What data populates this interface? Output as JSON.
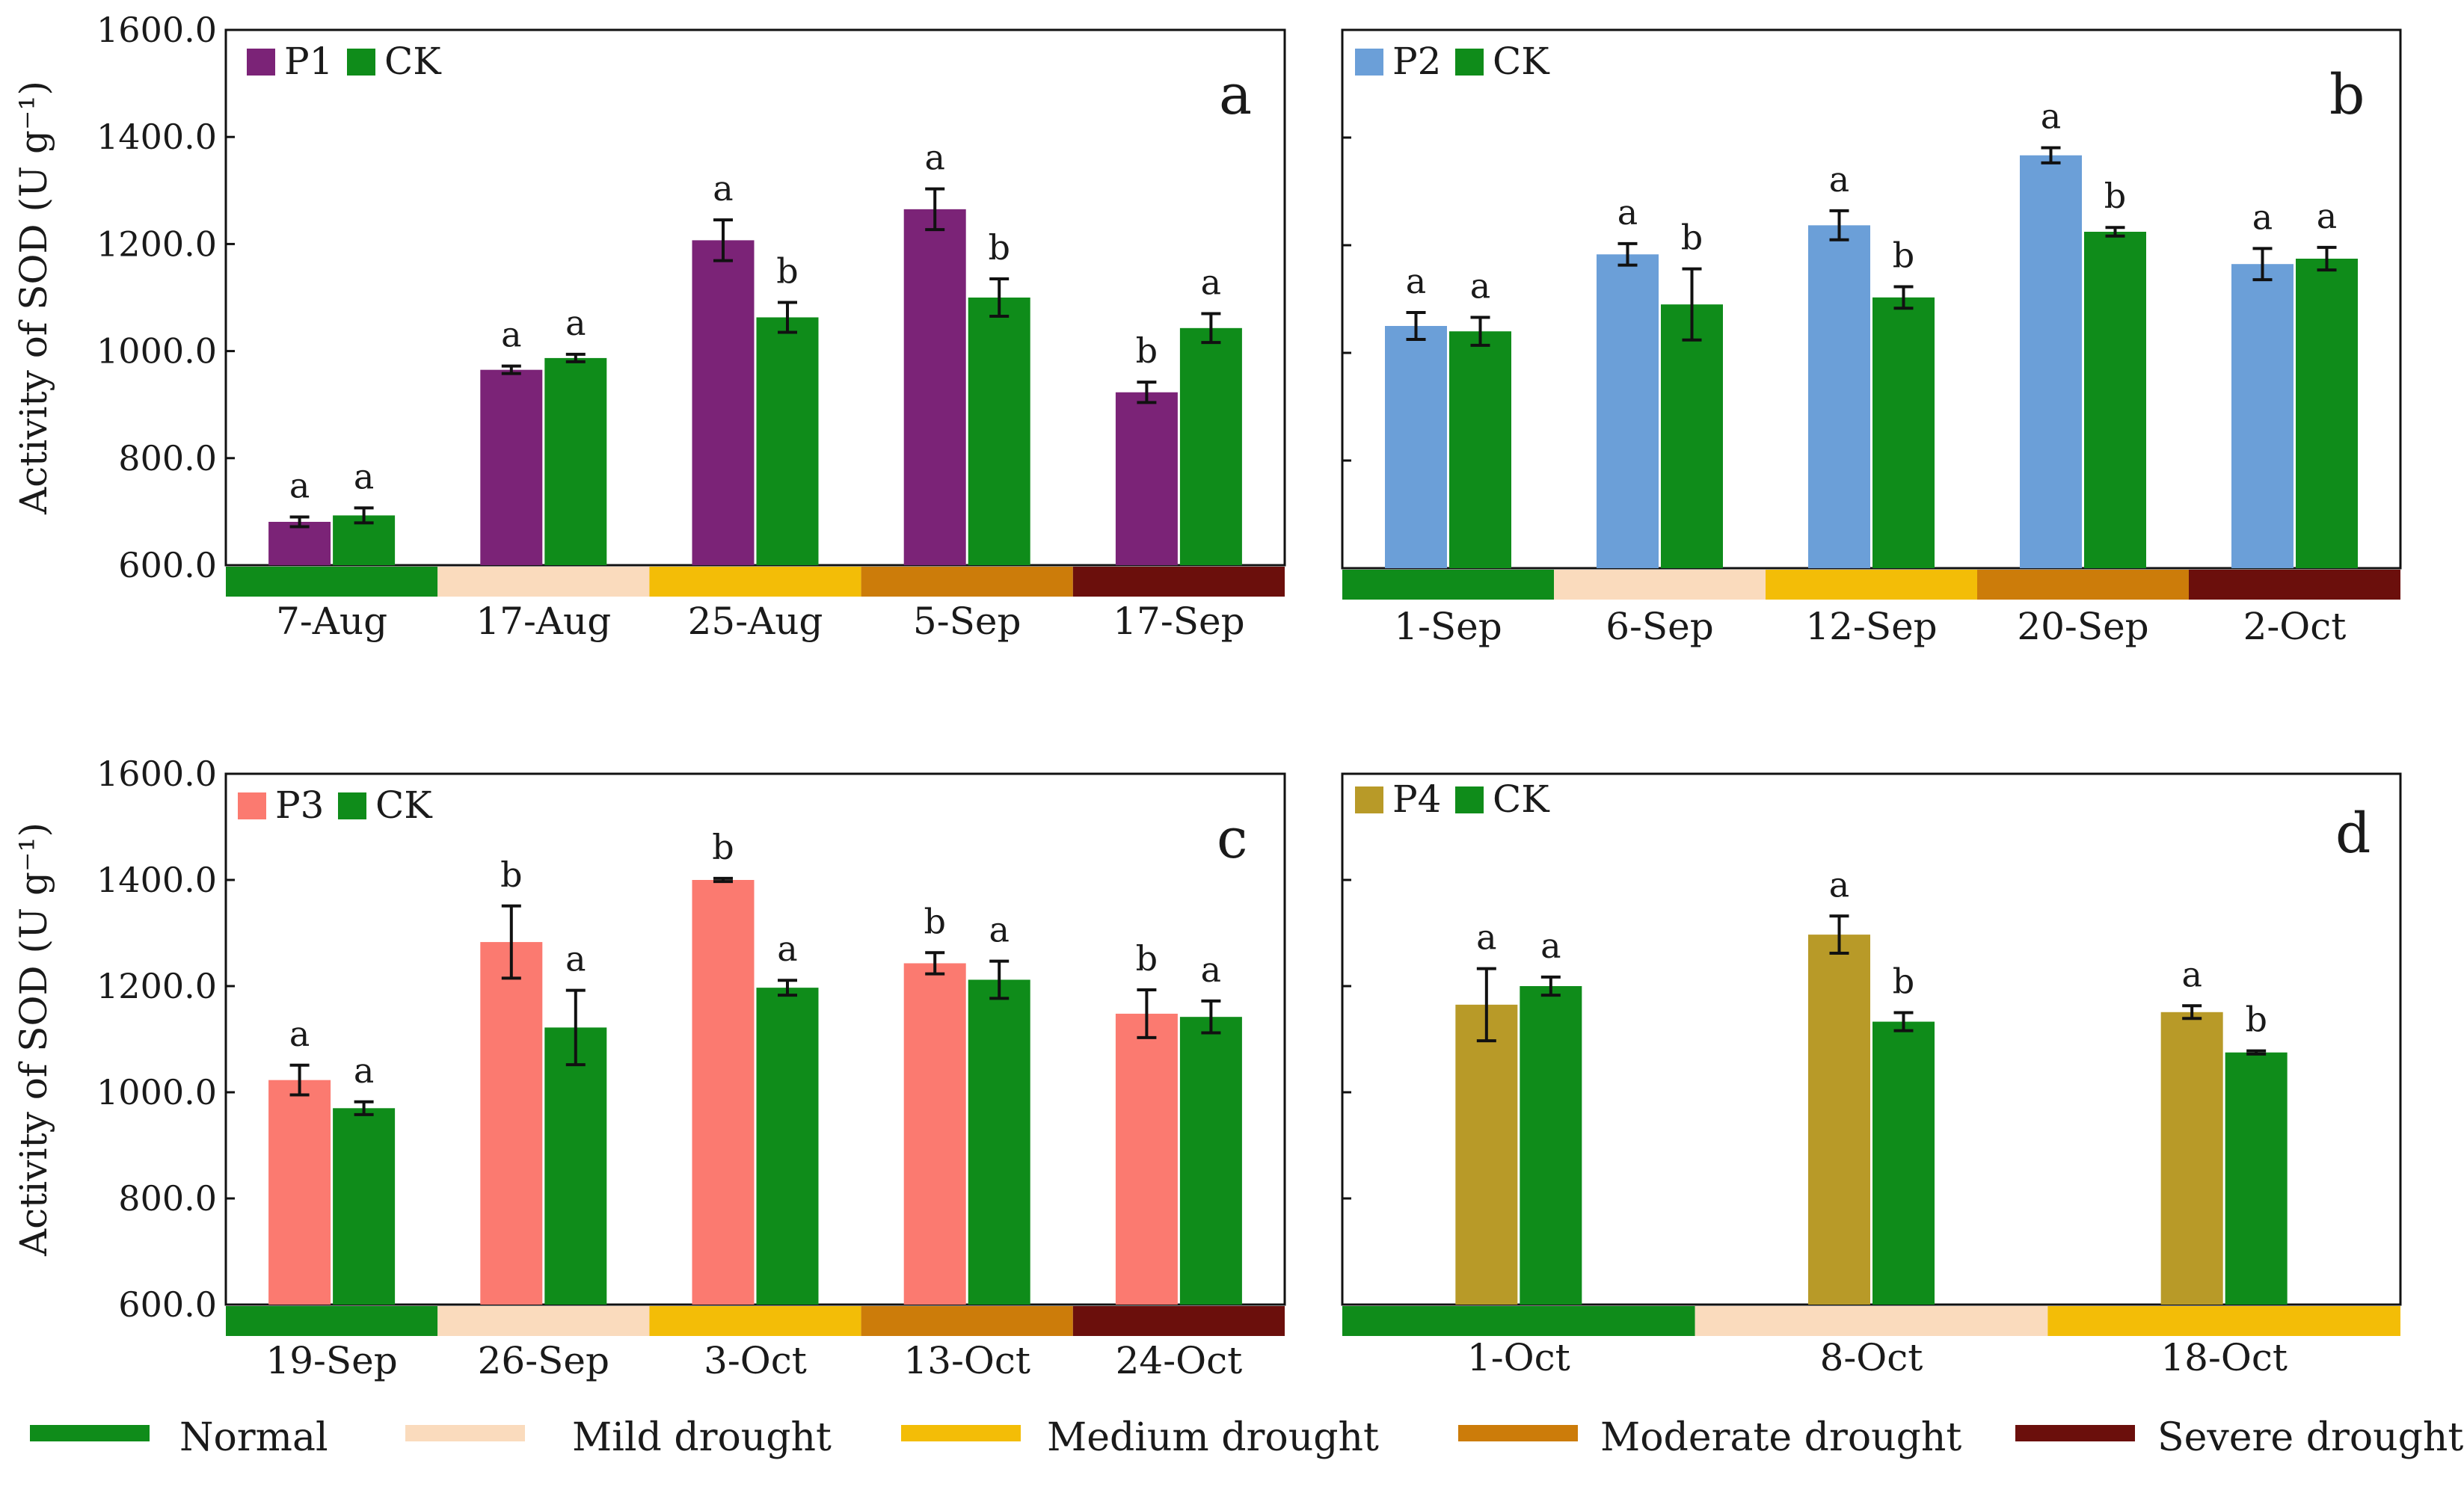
{
  "y_axis_label": "Activity of  SOD (U g⁻¹)",
  "colors": {
    "ck": "#0f8c1a",
    "P1": "#7b2377",
    "P2": "#6b9fd8",
    "P3": "#fb7a70",
    "P4": "#b89a28",
    "Normal": "#0f8c1a",
    "Mild drought": "#fadbbd",
    "Medium drought": "#f3bd07",
    "Moderate drought": "#cc7c0a",
    "Severe drought": "#6b0f0c"
  },
  "legend_stages": [
    {
      "label": "Normal",
      "key": "Normal"
    },
    {
      "label": "Mild drought",
      "key": "Mild drought"
    },
    {
      "label": "Medium drought",
      "key": "Medium drought"
    },
    {
      "label": "Moderate drought",
      "key": "Moderate drought"
    },
    {
      "label": "Severe drought",
      "key": "Severe drought"
    }
  ],
  "chart_data": [
    {
      "type": "bar",
      "panel": "a",
      "ylim": [
        600,
        1600
      ],
      "yticks": [
        "600.0",
        "800.0",
        "1000.0",
        "1200.0",
        "1400.0",
        "1600.0"
      ],
      "show_y_ticks": true,
      "legend": [
        "P1",
        "CK"
      ],
      "categories": [
        "7-Aug",
        "17-Aug",
        "25-Aug",
        "5-Sep",
        "17-Sep"
      ],
      "stages": [
        "Normal",
        "Mild drought",
        "Medium drought",
        "Moderate drought",
        "Severe drought"
      ],
      "series": [
        {
          "name": "P1",
          "values": [
            681,
            965,
            1207,
            1265,
            923
          ],
          "errors": [
            9,
            7,
            38,
            38,
            19
          ],
          "letters": [
            "a",
            "a",
            "a",
            "a",
            "b"
          ]
        },
        {
          "name": "CK",
          "values": [
            693,
            987,
            1063,
            1100,
            1043
          ],
          "errors": [
            14,
            7,
            28,
            35,
            27
          ],
          "letters": [
            "a",
            "a",
            "b",
            "b",
            "a"
          ]
        }
      ]
    },
    {
      "type": "bar",
      "panel": "b",
      "ylim": [
        600,
        1600
      ],
      "yticks": [
        "600.0",
        "800.0",
        "1000.0",
        "1200.0",
        "1400.0",
        "1600.0"
      ],
      "show_y_ticks": false,
      "legend": [
        "P2",
        "CK"
      ],
      "categories": [
        "1-Sep",
        "6-Sep",
        "12-Sep",
        "20-Sep",
        "2-Oct"
      ],
      "stages": [
        "Normal",
        "Mild drought",
        "Medium drought",
        "Moderate drought",
        "Severe drought"
      ],
      "series": [
        {
          "name": "P2",
          "values": [
            1050,
            1183,
            1237,
            1367,
            1165
          ],
          "errors": [
            25,
            20,
            27,
            14,
            29
          ],
          "letters": [
            "a",
            "a",
            "a",
            "a",
            "a"
          ]
        },
        {
          "name": "CK",
          "values": [
            1040,
            1090,
            1103,
            1225,
            1175
          ],
          "errors": [
            26,
            66,
            20,
            8,
            21
          ],
          "letters": [
            "a",
            "b",
            "b",
            "b",
            "a"
          ]
        }
      ]
    },
    {
      "type": "bar",
      "panel": "c",
      "ylim": [
        600,
        1600
      ],
      "yticks": [
        "600.0",
        "800.0",
        "1000.0",
        "1200.0",
        "1400.0",
        "1600.0"
      ],
      "show_y_ticks": true,
      "legend": [
        "P3",
        "CK"
      ],
      "categories": [
        "19-Sep",
        "26-Sep",
        "3-Oct",
        "13-Oct",
        "24-Oct"
      ],
      "stages": [
        "Normal",
        "Mild drought",
        "Medium drought",
        "Moderate drought",
        "Severe drought"
      ],
      "series": [
        {
          "name": "P3",
          "values": [
            1023,
            1283,
            1400,
            1243,
            1148
          ],
          "errors": [
            28,
            68,
            3,
            20,
            45
          ],
          "letters": [
            "a",
            "b",
            "b",
            "b",
            "b"
          ]
        },
        {
          "name": "CK",
          "values": [
            970,
            1122,
            1197,
            1212,
            1142
          ],
          "errors": [
            12,
            70,
            14,
            35,
            30
          ],
          "letters": [
            "a",
            "a",
            "a",
            "a",
            "a"
          ]
        }
      ]
    },
    {
      "type": "bar",
      "panel": "d",
      "ylim": [
        600,
        1600
      ],
      "yticks": [
        "600.0",
        "800.0",
        "1000.0",
        "1200.0",
        "1400.0",
        "1600.0"
      ],
      "show_y_ticks": false,
      "legend": [
        "P4",
        "CK"
      ],
      "categories": [
        "1-Oct",
        "8-Oct",
        "18-Oct"
      ],
      "stages": [
        "Normal",
        "Mild drought",
        "Medium drought"
      ],
      "series": [
        {
          "name": "P4",
          "values": [
            1165,
            1297,
            1151
          ],
          "errors": [
            68,
            35,
            12
          ],
          "letters": [
            "a",
            "a",
            "a"
          ]
        },
        {
          "name": "CK",
          "values": [
            1200,
            1133,
            1075
          ],
          "errors": [
            17,
            17,
            3
          ],
          "letters": [
            "a",
            "b",
            "b"
          ]
        }
      ]
    }
  ]
}
